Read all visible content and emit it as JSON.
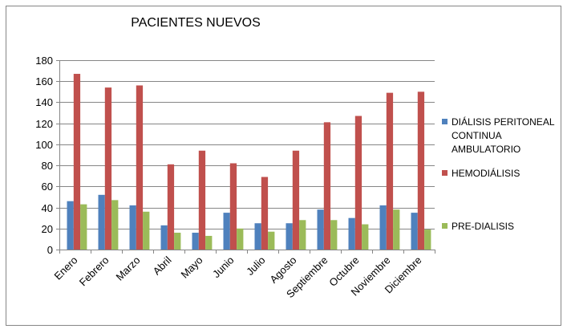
{
  "chart_data": {
    "type": "bar",
    "title": "PACIENTES NUEVOS",
    "xlabel": "",
    "ylabel": "",
    "ylim": [
      0,
      180
    ],
    "yticks": [
      0,
      20,
      40,
      60,
      80,
      100,
      120,
      140,
      160,
      180
    ],
    "grid": true,
    "legend_position": "right",
    "categories": [
      "Enero",
      "Febrero",
      "Marzo",
      "Abril",
      "Mayo",
      "Junio",
      "Julio",
      "Agosto",
      "Septiembre",
      "Octubre",
      "Noviembre",
      "Diciembre"
    ],
    "series": [
      {
        "name": "DIÁLISIS PERITONEAL CONTINUA AMBULATORIO",
        "name_lines": [
          "DIÁLISIS PERITONEAL",
          "CONTINUA",
          "AMBULATORIO"
        ],
        "color": "#4F81BD",
        "values": [
          46,
          52,
          42,
          23,
          16,
          35,
          25,
          25,
          38,
          30,
          42,
          35
        ]
      },
      {
        "name": "HEMODIÁLISIS",
        "name_lines": [
          "HEMODIÁLISIS"
        ],
        "color": "#C0504D",
        "values": [
          167,
          154,
          156,
          81,
          94,
          82,
          69,
          94,
          121,
          127,
          149,
          150
        ]
      },
      {
        "name": "PRE-DIALISIS",
        "name_lines": [
          "PRE-DIALISIS"
        ],
        "color": "#9BBB59",
        "values": [
          43,
          47,
          36,
          16,
          13,
          20,
          17,
          28,
          28,
          24,
          38,
          19
        ]
      }
    ]
  }
}
